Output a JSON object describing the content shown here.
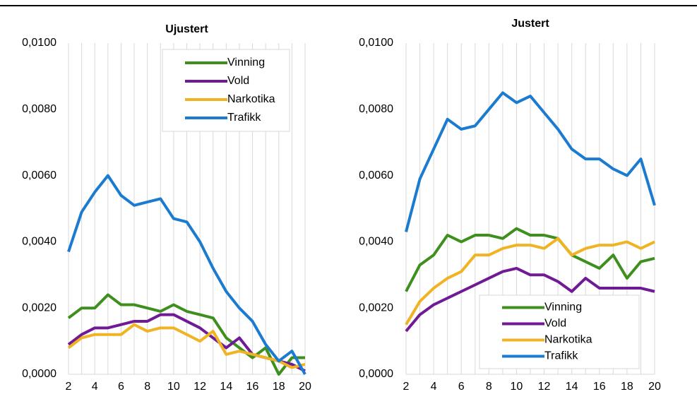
{
  "chart_data": [
    {
      "type": "line",
      "title": "Ujustert",
      "x": [
        2,
        3,
        4,
        5,
        6,
        7,
        8,
        9,
        10,
        11,
        12,
        13,
        14,
        15,
        16,
        17,
        18,
        19,
        20
      ],
      "xlim": [
        2,
        20
      ],
      "xticks": [
        2,
        4,
        6,
        8,
        10,
        12,
        14,
        16,
        18,
        20
      ],
      "ylim": [
        0,
        0.01
      ],
      "yticks": [
        {
          "value": 0,
          "label": "0,0000"
        },
        {
          "value": 0.002,
          "label": "0,0020"
        },
        {
          "value": 0.004,
          "label": "0,0040"
        },
        {
          "value": 0.006,
          "label": "0,0060"
        },
        {
          "value": 0.008,
          "label": "0,0080"
        },
        {
          "value": 0.01,
          "label": "0,0100"
        }
      ],
      "legend": "upper right",
      "series": [
        {
          "name": "Vinning",
          "color": "#3f8f1f",
          "values": [
            0.0017,
            0.002,
            0.002,
            0.0024,
            0.0021,
            0.0021,
            0.002,
            0.0019,
            0.0021,
            0.0019,
            0.0018,
            0.0017,
            0.0011,
            0.0008,
            0.0005,
            0.0008,
            0.0,
            0.0005,
            0.0005
          ]
        },
        {
          "name": "Vold",
          "color": "#701a96",
          "values": [
            0.0009,
            0.0012,
            0.0014,
            0.0014,
            0.0015,
            0.0016,
            0.0016,
            0.0018,
            0.0018,
            0.0016,
            0.0014,
            0.0011,
            0.0008,
            0.0011,
            0.0006,
            0.0005,
            0.0004,
            0.0003,
            0.0001
          ]
        },
        {
          "name": "Narkotika",
          "color": "#f0b323",
          "values": [
            0.0008,
            0.0011,
            0.0012,
            0.0012,
            0.0012,
            0.0015,
            0.0013,
            0.0014,
            0.0014,
            0.0012,
            0.001,
            0.0013,
            0.0006,
            0.0007,
            0.0006,
            0.0005,
            0.0004,
            0.0002,
            0.0003
          ]
        },
        {
          "name": "Trafikk",
          "color": "#1a7bd0",
          "values": [
            0.0037,
            0.0049,
            0.0055,
            0.006,
            0.0054,
            0.0051,
            0.0052,
            0.0053,
            0.0047,
            0.0046,
            0.004,
            0.0032,
            0.0025,
            0.002,
            0.0016,
            0.0009,
            0.0004,
            0.0007,
            0.0
          ]
        }
      ]
    },
    {
      "type": "line",
      "title": "Justert",
      "x": [
        2,
        3,
        4,
        5,
        6,
        7,
        8,
        9,
        10,
        11,
        12,
        13,
        14,
        15,
        16,
        17,
        18,
        19,
        20
      ],
      "xlim": [
        2,
        20
      ],
      "xticks": [
        2,
        4,
        6,
        8,
        10,
        12,
        14,
        16,
        18,
        20
      ],
      "ylim": [
        0,
        0.01
      ],
      "yticks": [
        {
          "value": 0,
          "label": "0,0000"
        },
        {
          "value": 0.002,
          "label": "0,0020"
        },
        {
          "value": 0.004,
          "label": "0,0040"
        },
        {
          "value": 0.006,
          "label": "0,0060"
        },
        {
          "value": 0.008,
          "label": "0,0080"
        },
        {
          "value": 0.01,
          "label": "0,0100"
        }
      ],
      "legend": "lower right",
      "series": [
        {
          "name": "Vinning",
          "color": "#3f8f1f",
          "values": [
            0.0025,
            0.0033,
            0.0036,
            0.0042,
            0.004,
            0.0042,
            0.0042,
            0.0041,
            0.0044,
            0.0042,
            0.0042,
            0.0041,
            0.0036,
            0.0034,
            0.0032,
            0.0036,
            0.0029,
            0.0034,
            0.0035
          ]
        },
        {
          "name": "Vold",
          "color": "#701a96",
          "values": [
            0.0013,
            0.0018,
            0.0021,
            0.0023,
            0.0025,
            0.0027,
            0.0029,
            0.0031,
            0.0032,
            0.003,
            0.003,
            0.0028,
            0.0025,
            0.0029,
            0.0026,
            0.0026,
            0.0026,
            0.0026,
            0.0025
          ]
        },
        {
          "name": "Narkotika",
          "color": "#f0b323",
          "values": [
            0.0015,
            0.0022,
            0.0026,
            0.0029,
            0.0031,
            0.0036,
            0.0036,
            0.0038,
            0.0039,
            0.0039,
            0.0038,
            0.0041,
            0.0036,
            0.0038,
            0.0039,
            0.0039,
            0.004,
            0.0038,
            0.004
          ]
        },
        {
          "name": "Trafikk",
          "color": "#1a7bd0",
          "values": [
            0.0043,
            0.0059,
            0.0068,
            0.0077,
            0.0074,
            0.0075,
            0.008,
            0.0085,
            0.0082,
            0.0084,
            0.0079,
            0.0074,
            0.0068,
            0.0065,
            0.0065,
            0.0062,
            0.006,
            0.0065,
            0.0051
          ]
        }
      ]
    }
  ]
}
